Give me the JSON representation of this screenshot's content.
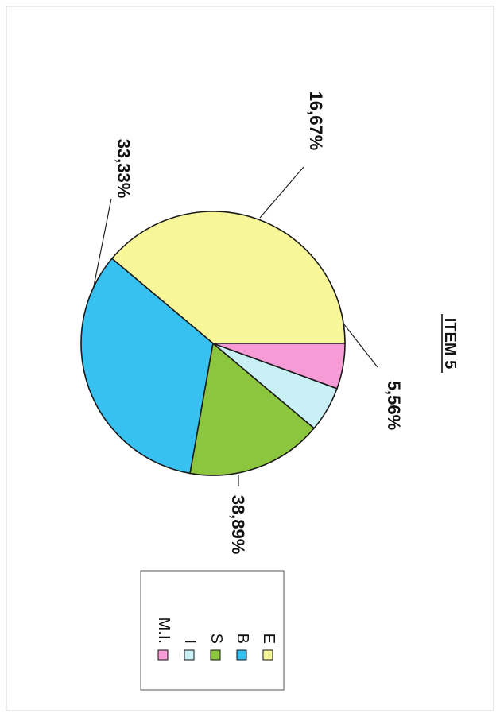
{
  "chart_data": {
    "type": "pie",
    "title": "ITEM 5",
    "orientation": "rotated-90-clockwise",
    "slices": [
      {
        "label": "E",
        "value": 38.89,
        "value_label": "38,89%",
        "color": "#f7f79a"
      },
      {
        "label": "B",
        "value": 33.33,
        "value_label": "33,33%",
        "color": "#36c1f1"
      },
      {
        "label": "S",
        "value": 16.67,
        "value_label": "16,67%",
        "color": "#8cc63f"
      },
      {
        "label": "I",
        "value": 5.56,
        "value_label": "",
        "color": "#c9f1f5"
      },
      {
        "label": "M.I.",
        "value": 5.56,
        "value_label": "5,56%",
        "color": "#f79bd6"
      }
    ],
    "legend_position": "bottom-left"
  }
}
